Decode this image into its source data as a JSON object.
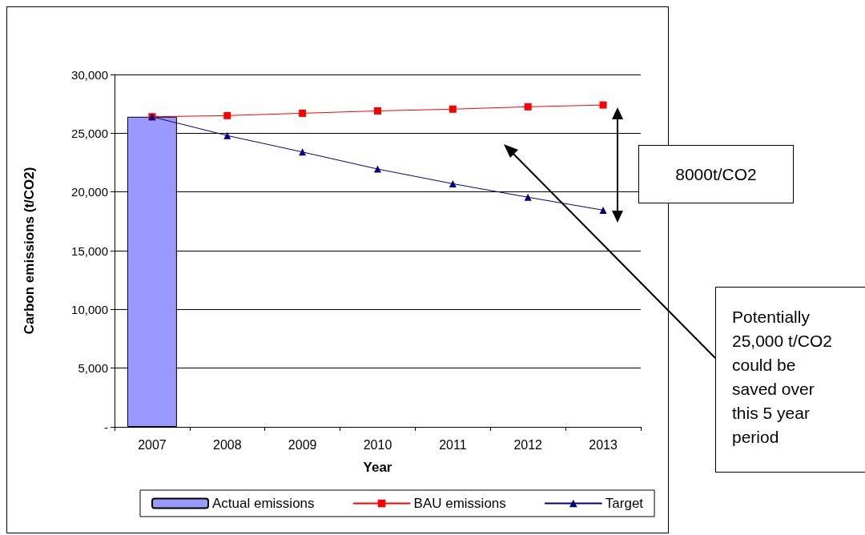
{
  "chart_data": {
    "type": "line",
    "xlabel": "Year",
    "ylabel": "Carbon emissions (t/CO2)",
    "categories": [
      "2007",
      "2008",
      "2009",
      "2010",
      "2011",
      "2012",
      "2013"
    ],
    "series": [
      {
        "name": "Actual emissions",
        "type": "bar",
        "color": "#9999ff",
        "values": [
          26400,
          null,
          null,
          null,
          null,
          null,
          null
        ]
      },
      {
        "name": "BAU emissions",
        "color": "#ff0000",
        "marker": "square",
        "values": [
          26400,
          26500,
          26700,
          26900,
          27050,
          27250,
          27400
        ]
      },
      {
        "name": "Target",
        "color": "#000080",
        "marker": "triangle",
        "values": [
          26400,
          24800,
          23400,
          21950,
          20700,
          19550,
          18450
        ]
      }
    ],
    "ylim": [
      0,
      30000
    ],
    "yticks": [
      {
        "value": 0,
        "label": "-"
      },
      {
        "value": 5000,
        "label": "5,000"
      },
      {
        "value": 10000,
        "label": "10,000"
      },
      {
        "value": 15000,
        "label": "15,000"
      },
      {
        "value": 20000,
        "label": "20,000"
      },
      {
        "value": 25000,
        "label": "25,000"
      },
      {
        "value": 30000,
        "label": "30,000"
      }
    ],
    "grid": "y",
    "legend": "bottom",
    "line_style": "solid",
    "annotations": [
      "8000t/CO2",
      "Potentially 25,000 t/CO2 could be saved over this 5 year period"
    ]
  }
}
